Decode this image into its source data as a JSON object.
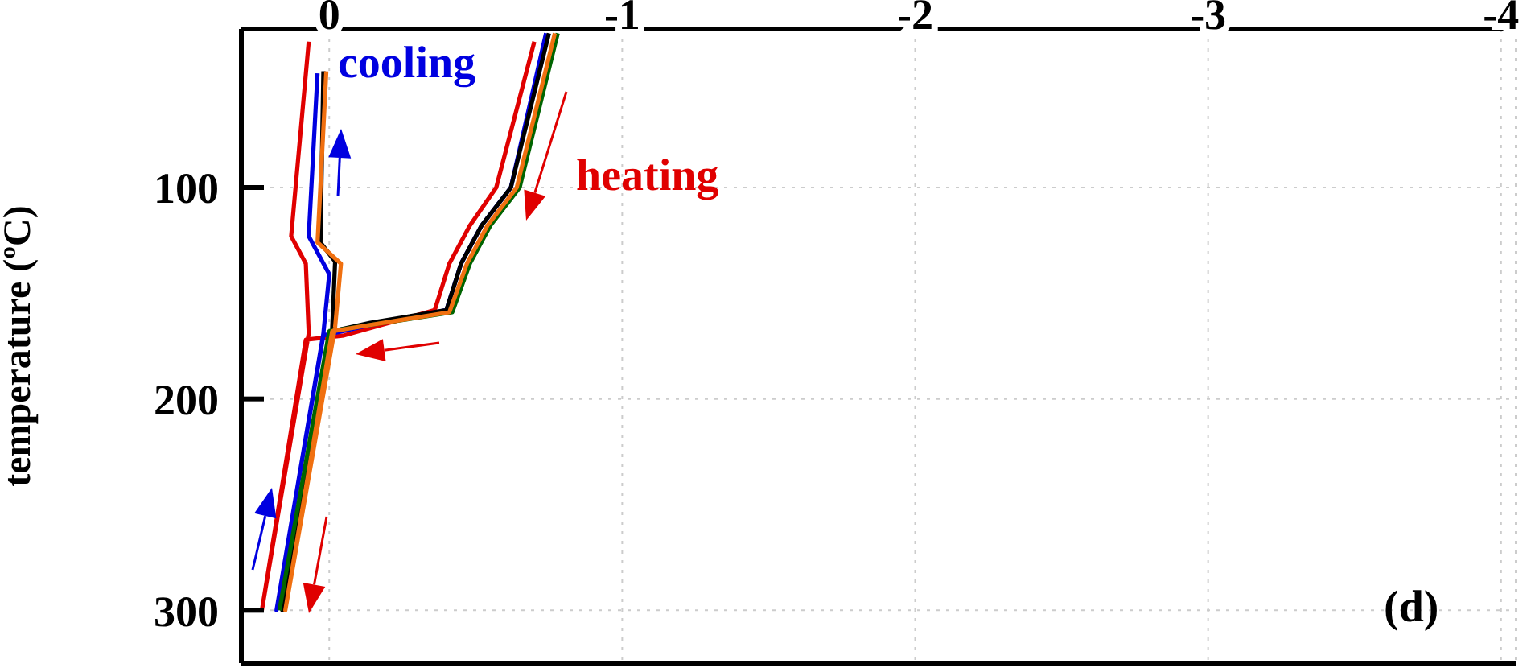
{
  "chart_data": {
    "type": "line",
    "ylabel": "temperature (ºC)",
    "xlim": [
      0.3,
      -4.05
    ],
    "xticks": [
      0,
      -1,
      -2,
      -3,
      -4
    ],
    "ylim": [
      325,
      25
    ],
    "yticks": [
      100,
      200,
      300
    ],
    "grid": true,
    "marker": "none",
    "line_style": "solid",
    "annotations": [
      "cooling",
      "heating",
      "(d)"
    ],
    "series": [
      {
        "color": "#e00000",
        "x": [
          0.07,
          0.13,
          0.08,
          0.07,
          0.23,
          0.08,
          -0.05,
          -0.36,
          -0.41,
          -0.48,
          -0.57,
          -0.7
        ],
        "values": [
          31,
          123,
          136,
          169,
          300,
          172,
          170,
          158,
          136,
          118,
          100,
          31
        ]
      },
      {
        "color": "#0000e0",
        "x": [
          0.04,
          0.07,
          0.0,
          0.02,
          0.18,
          0.02,
          -0.14,
          -0.4,
          -0.45,
          -0.52,
          -0.62,
          -0.74
        ],
        "values": [
          46,
          123,
          141,
          169,
          300,
          170,
          165,
          158,
          136,
          118,
          100,
          27
        ]
      },
      {
        "color": "#000000",
        "x": [
          0.02,
          0.03,
          -0.02,
          -0.01,
          0.16,
          -0.01,
          -0.14,
          -0.4,
          -0.45,
          -0.52,
          -0.62,
          -0.75
        ],
        "values": [
          45,
          126,
          135,
          167,
          300,
          168,
          164,
          158,
          136,
          118,
          100,
          27
        ]
      },
      {
        "color": "#006400",
        "x": [
          0.17,
          0.0,
          -0.14,
          -0.42,
          -0.48,
          -0.55,
          -0.65,
          -0.78
        ],
        "values": [
          300,
          168,
          165,
          159,
          136,
          118,
          100,
          27
        ]
      },
      {
        "color": "#f07010",
        "x": [
          0.01,
          0.04,
          -0.04,
          -0.02,
          0.15,
          -0.01,
          -0.14,
          -0.41,
          -0.47,
          -0.54,
          -0.64,
          -0.77
        ],
        "values": [
          45,
          126,
          136,
          166,
          300,
          168,
          165,
          159,
          136,
          118,
          100,
          27
        ]
      }
    ]
  }
}
